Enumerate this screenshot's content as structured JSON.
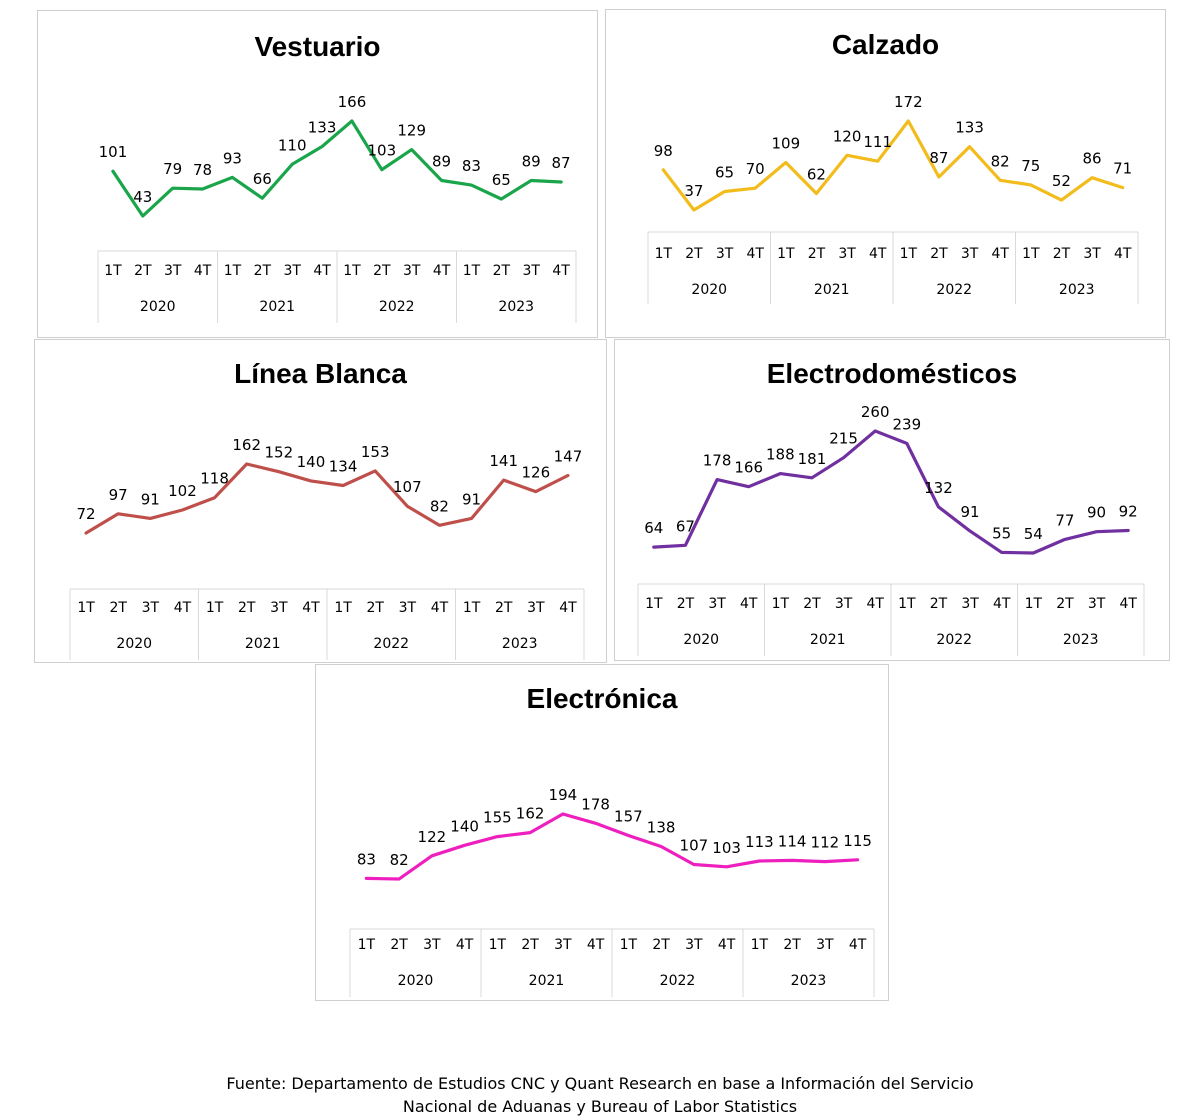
{
  "source": {
    "line1": "Fuente: Departamento de Estudios CNC y Quant Research en base a Información del Servicio",
    "line2": "Nacional de Aduanas y Bureau of Labor Statistics"
  },
  "chart_data": [
    {
      "id": "vestuario",
      "type": "line",
      "title": "Vestuario",
      "color": "#1aa54a",
      "quarters": [
        "1T",
        "2T",
        "3T",
        "4T",
        "1T",
        "2T",
        "3T",
        "4T",
        "1T",
        "2T",
        "3T",
        "4T",
        "1T",
        "2T",
        "3T",
        "4T"
      ],
      "years": [
        "2020",
        "2021",
        "2022",
        "2023"
      ],
      "values": [
        101,
        43,
        79,
        78,
        93,
        66,
        110,
        133,
        166,
        103,
        129,
        89,
        83,
        65,
        89,
        87
      ]
    },
    {
      "id": "calzado",
      "type": "line",
      "title": "Calzado",
      "color": "#f2bc1d",
      "quarters": [
        "1T",
        "2T",
        "3T",
        "4T",
        "1T",
        "2T",
        "3T",
        "4T",
        "1T",
        "2T",
        "3T",
        "4T",
        "1T",
        "2T",
        "3T",
        "4T"
      ],
      "years": [
        "2020",
        "2021",
        "2022",
        "2023"
      ],
      "values": [
        98,
        37,
        65,
        70,
        109,
        62,
        120,
        111,
        172,
        87,
        133,
        82,
        75,
        52,
        86,
        71
      ]
    },
    {
      "id": "linea-blanca",
      "type": "line",
      "title": "Línea Blanca",
      "color": "#bf4f4a",
      "quarters": [
        "1T",
        "2T",
        "3T",
        "4T",
        "1T",
        "2T",
        "3T",
        "4T",
        "1T",
        "2T",
        "3T",
        "4T",
        "1T",
        "2T",
        "3T",
        "4T"
      ],
      "years": [
        "2020",
        "2021",
        "2022",
        "2023"
      ],
      "values": [
        72,
        97,
        91,
        102,
        118,
        162,
        152,
        140,
        134,
        153,
        107,
        82,
        91,
        141,
        126,
        147
      ]
    },
    {
      "id": "electrodomesticos",
      "type": "line",
      "title": "Electrodomésticos",
      "color": "#7030a0",
      "quarters": [
        "1T",
        "2T",
        "3T",
        "4T",
        "1T",
        "2T",
        "3T",
        "4T",
        "1T",
        "2T",
        "3T",
        "4T",
        "1T",
        "2T",
        "3T",
        "4T"
      ],
      "years": [
        "2020",
        "2021",
        "2022",
        "2023"
      ],
      "values": [
        64,
        67,
        178,
        166,
        188,
        181,
        215,
        260,
        239,
        132,
        91,
        55,
        54,
        77,
        90,
        92
      ]
    },
    {
      "id": "electronica",
      "type": "line",
      "title": "Electrónica",
      "color": "#ee1fbf",
      "quarters": [
        "1T",
        "2T",
        "3T",
        "4T",
        "1T",
        "2T",
        "3T",
        "4T",
        "1T",
        "2T",
        "3T",
        "4T",
        "1T",
        "2T",
        "3T",
        "4T"
      ],
      "years": [
        "2020",
        "2021",
        "2022",
        "2023"
      ],
      "values": [
        83,
        82,
        122,
        140,
        155,
        162,
        194,
        178,
        157,
        138,
        107,
        103,
        113,
        114,
        112,
        115
      ]
    }
  ]
}
